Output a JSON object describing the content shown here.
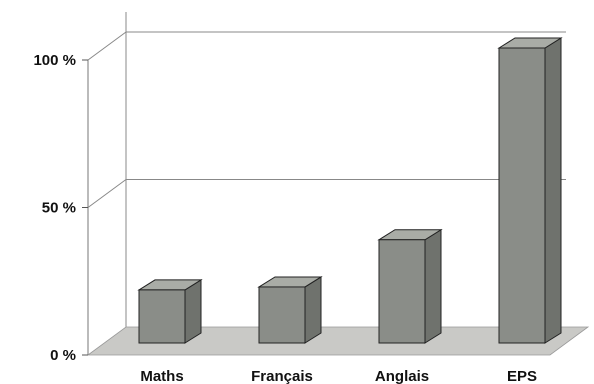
{
  "chart_data": {
    "type": "bar",
    "title": "",
    "xlabel": "",
    "ylabel": "",
    "categories": [
      "Maths",
      "Français",
      "Anglais",
      "EPS"
    ],
    "values": [
      18,
      19,
      35,
      100
    ],
    "ylim": [
      0,
      100
    ],
    "yticks": [
      {
        "value": 0,
        "label": "0 %"
      },
      {
        "value": 50,
        "label": "50 %"
      },
      {
        "value": 100,
        "label": "100 %"
      }
    ],
    "grid": true,
    "style": "3d",
    "colors": {
      "bar_front": "#8a8d88",
      "bar_side": "#6f726d",
      "bar_top": "#a9aca6",
      "floor": "#c9c9c6",
      "outline": "#222222"
    }
  }
}
